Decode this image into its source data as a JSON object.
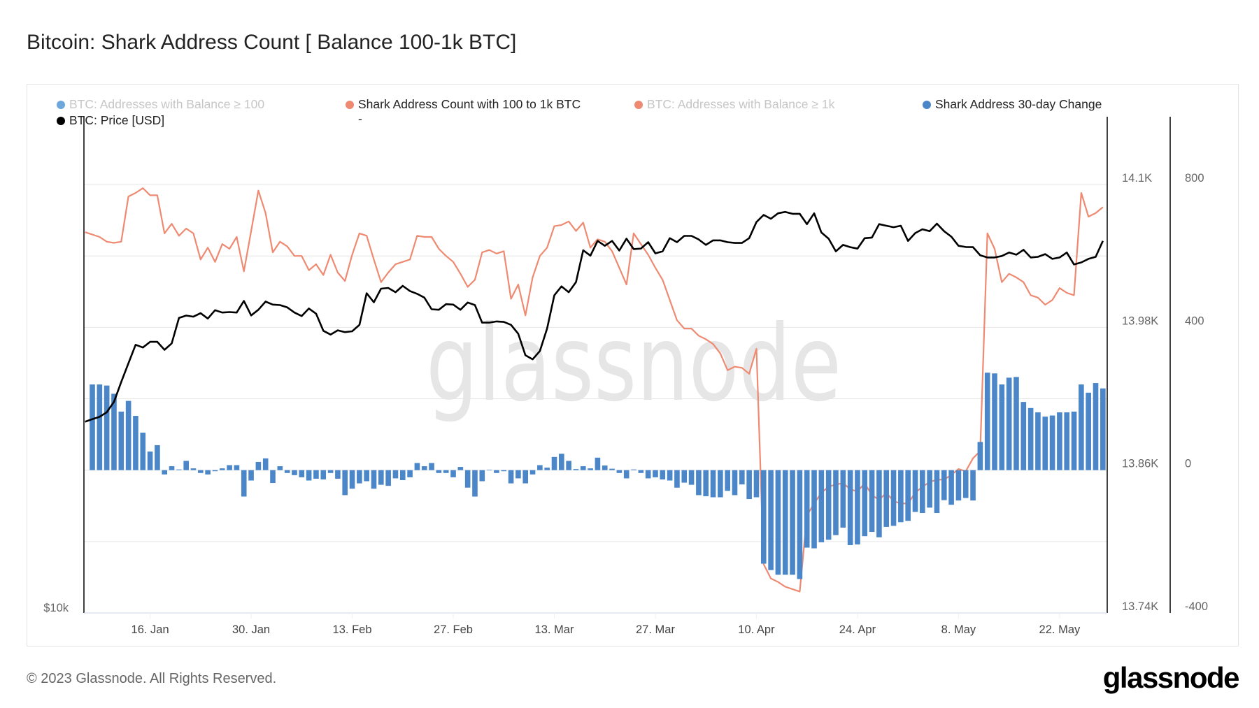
{
  "title": "Bitcoin: Shark Address Count [ Balance 100-1k BTC]",
  "footer": {
    "copyright": "© 2023 Glassnode. All Rights Reserved.",
    "logo": "glassnode"
  },
  "watermark": "glassnode",
  "legend": [
    {
      "label": "BTC: Addresses with Balance ≥ 100",
      "color": "#6ea7db",
      "enabled": false
    },
    {
      "label": "Shark Address Count with 100 to 1k BTC",
      "color": "#ee8a72",
      "enabled": true
    },
    {
      "label": "BTC: Addresses with Balance ≥ 1k",
      "color": "#ee8a72",
      "enabled": false
    },
    {
      "label": "Shark Address 30-day Change",
      "color": "#4a86c8",
      "enabled": true
    },
    {
      "label": "BTC: Price [USD]",
      "color": "#000000",
      "enabled": true
    },
    {
      "label": "-",
      "color": "",
      "enabled": true
    }
  ],
  "chart_data": {
    "type": "bar+line",
    "grid": true,
    "legend_position": "top",
    "x_ticks": [
      {
        "date": "2023-01-16",
        "label": "16. Jan"
      },
      {
        "date": "2023-01-30",
        "label": "30. Jan"
      },
      {
        "date": "2023-02-13",
        "label": "13. Feb"
      },
      {
        "date": "2023-02-27",
        "label": "27. Feb"
      },
      {
        "date": "2023-03-13",
        "label": "13. Mar"
      },
      {
        "date": "2023-03-27",
        "label": "27. Mar"
      },
      {
        "date": "2023-04-10",
        "label": "10. Apr"
      },
      {
        "date": "2023-04-24",
        "label": "24. Apr"
      },
      {
        "date": "2023-05-08",
        "label": "8. May"
      },
      {
        "date": "2023-05-22",
        "label": "22. May"
      }
    ],
    "axes": {
      "price": {
        "position": "left",
        "scale": "log",
        "ylim": [
          10000,
          39500
        ],
        "ticks": [
          {
            "value": 10000,
            "label": "$10k"
          }
        ]
      },
      "count": {
        "position": "right",
        "scale": "linear",
        "ylim": [
          13740,
          14157
        ],
        "ticks": [
          {
            "value": 14100,
            "label": "14.1K"
          },
          {
            "value": 13980,
            "label": "13.98K"
          },
          {
            "value": 13860,
            "label": "13.86K"
          },
          {
            "value": 13740,
            "label": "13.74K"
          }
        ]
      },
      "change": {
        "position": "right-outer",
        "scale": "linear",
        "ylim": [
          -400,
          990
        ],
        "ticks": [
          {
            "value": 800,
            "label": "800"
          },
          {
            "value": 400,
            "label": "400"
          },
          {
            "value": 0,
            "label": "0"
          },
          {
            "value": -400,
            "label": "-400"
          }
        ]
      }
    },
    "dates": [
      "2023-01-07",
      "2023-01-08",
      "2023-01-09",
      "2023-01-10",
      "2023-01-11",
      "2023-01-12",
      "2023-01-13",
      "2023-01-14",
      "2023-01-15",
      "2023-01-16",
      "2023-01-17",
      "2023-01-18",
      "2023-01-19",
      "2023-01-20",
      "2023-01-21",
      "2023-01-22",
      "2023-01-23",
      "2023-01-24",
      "2023-01-25",
      "2023-01-26",
      "2023-01-27",
      "2023-01-28",
      "2023-01-29",
      "2023-01-30",
      "2023-01-31",
      "2023-02-01",
      "2023-02-02",
      "2023-02-03",
      "2023-02-04",
      "2023-02-05",
      "2023-02-06",
      "2023-02-07",
      "2023-02-08",
      "2023-02-09",
      "2023-02-10",
      "2023-02-11",
      "2023-02-12",
      "2023-02-13",
      "2023-02-14",
      "2023-02-15",
      "2023-02-16",
      "2023-02-17",
      "2023-02-18",
      "2023-02-19",
      "2023-02-20",
      "2023-02-21",
      "2023-02-22",
      "2023-02-23",
      "2023-02-24",
      "2023-02-25",
      "2023-02-26",
      "2023-02-27",
      "2023-02-28",
      "2023-03-01",
      "2023-03-02",
      "2023-03-03",
      "2023-03-04",
      "2023-03-05",
      "2023-03-06",
      "2023-03-07",
      "2023-03-08",
      "2023-03-09",
      "2023-03-10",
      "2023-03-11",
      "2023-03-12",
      "2023-03-13",
      "2023-03-14",
      "2023-03-15",
      "2023-03-16",
      "2023-03-17",
      "2023-03-18",
      "2023-03-19",
      "2023-03-20",
      "2023-03-21",
      "2023-03-22",
      "2023-03-23",
      "2023-03-24",
      "2023-03-25",
      "2023-03-26",
      "2023-03-27",
      "2023-03-28",
      "2023-03-29",
      "2023-03-30",
      "2023-03-31",
      "2023-04-01",
      "2023-04-02",
      "2023-04-03",
      "2023-04-04",
      "2023-04-05",
      "2023-04-06",
      "2023-04-07",
      "2023-04-08",
      "2023-04-09",
      "2023-04-10",
      "2023-04-11",
      "2023-04-12",
      "2023-04-13",
      "2023-04-14",
      "2023-04-15",
      "2023-04-16",
      "2023-04-17",
      "2023-04-18",
      "2023-04-19",
      "2023-04-20",
      "2023-04-21",
      "2023-04-22",
      "2023-04-23",
      "2023-04-24",
      "2023-04-25",
      "2023-04-26",
      "2023-04-27",
      "2023-04-28",
      "2023-04-29",
      "2023-04-30",
      "2023-05-01",
      "2023-05-02",
      "2023-05-03",
      "2023-05-04",
      "2023-05-05",
      "2023-05-06",
      "2023-05-07",
      "2023-05-08",
      "2023-05-09",
      "2023-05-10",
      "2023-05-11",
      "2023-05-12",
      "2023-05-13",
      "2023-05-14",
      "2023-05-15",
      "2023-05-16",
      "2023-05-17",
      "2023-05-18",
      "2023-05-19",
      "2023-05-20",
      "2023-05-21",
      "2023-05-22",
      "2023-05-23",
      "2023-05-24",
      "2023-05-25",
      "2023-05-26",
      "2023-05-27",
      "2023-05-28"
    ],
    "series": [
      {
        "name": "Shark Address Count with 100 to 1k BTC",
        "type": "line",
        "axis": "count",
        "color": "#ee8a72",
        "values": [
          14060,
          14058,
          14056,
          14052,
          14051,
          14052,
          14090,
          14093,
          14097,
          14091,
          14091,
          14059,
          14067,
          14057,
          14063,
          14059,
          14037,
          14047,
          14035,
          14050,
          14046,
          14056,
          14027,
          14061,
          14095,
          14076,
          14043,
          14052,
          14048,
          14040,
          14040,
          14028,
          14033,
          14024,
          14041,
          14026,
          14019,
          14041,
          14059,
          14057,
          14037,
          14018,
          14026,
          14033,
          14035,
          14037,
          14057,
          14056,
          14056,
          14046,
          14040,
          14035,
          14025,
          14014,
          14020,
          14043,
          14045,
          14042,
          14044,
          14004,
          14016,
          13990,
          14022,
          14040,
          14047,
          14065,
          14066,
          14069,
          14061,
          14068,
          14047,
          14054,
          14052,
          14044,
          14030,
          14016,
          14059,
          14050,
          14041,
          14030,
          14020,
          14003,
          13986,
          13979,
          13979,
          13973,
          13970,
          13966,
          13958,
          13944,
          13947,
          13946,
          13941,
          13962,
          13781,
          13769,
          13766,
          13762,
          13760,
          13758,
          13822,
          13832,
          13841,
          13846,
          13848,
          13849,
          13844,
          13842,
          13849,
          13839,
          13835,
          13841,
          13834,
          13832,
          13832,
          13841,
          13846,
          13850,
          13852,
          13852,
          13856,
          13861,
          13859,
          13870,
          13876,
          14059,
          14046,
          14018,
          14025,
          14022,
          14018,
          14007,
          14005,
          13999,
          14003,
          14013,
          14009,
          14007,
          14093,
          14073,
          14076,
          14081
        ]
      },
      {
        "name": "Shark Address 30-day Change",
        "type": "bar",
        "axis": "change",
        "color": "#4a86c8",
        "values": [
          null,
          240,
          240,
          237,
          214,
          164,
          194,
          152,
          105,
          52,
          70,
          -12,
          11,
          2,
          26,
          5,
          -8,
          -12,
          -3,
          5,
          14,
          14,
          -74,
          -29,
          23,
          33,
          -36,
          11,
          -8,
          -14,
          -20,
          -29,
          -24,
          -26,
          -8,
          -24,
          -70,
          -52,
          -37,
          -31,
          -52,
          -41,
          -44,
          -23,
          -28,
          -20,
          20,
          11,
          20,
          -8,
          -8,
          -20,
          9,
          -49,
          -74,
          -31,
          1,
          -8,
          -3,
          -37,
          -23,
          -37,
          -12,
          14,
          7,
          37,
          46,
          26,
          3,
          11,
          5,
          35,
          13,
          4,
          -8,
          -23,
          2,
          -8,
          -23,
          -20,
          -26,
          -29,
          -49,
          -35,
          -41,
          -70,
          -73,
          -76,
          -76,
          -58,
          -70,
          -40,
          -81,
          -76,
          -262,
          -280,
          -293,
          -293,
          -293,
          -305,
          -217,
          -219,
          -202,
          -195,
          -182,
          -161,
          -210,
          -208,
          -185,
          -173,
          -188,
          -159,
          -156,
          -146,
          -142,
          -117,
          -120,
          -105,
          -120,
          -84,
          -97,
          -85,
          -78,
          -85,
          79,
          273,
          271,
          240,
          259,
          261,
          191,
          174,
          162,
          150,
          153,
          162,
          162,
          164,
          240,
          217,
          244,
          229
        ]
      },
      {
        "name": "BTC: Price [USD]",
        "type": "line",
        "axis": "price",
        "color": "#000000",
        "values": [
          16980,
          17100,
          17210,
          17430,
          17940,
          18950,
          19960,
          21010,
          20850,
          21180,
          21180,
          20720,
          21090,
          22630,
          22780,
          22710,
          22930,
          22590,
          23120,
          22970,
          23000,
          22970,
          23720,
          22790,
          23150,
          23680,
          23480,
          23450,
          23300,
          22970,
          22750,
          23230,
          22900,
          21840,
          21610,
          21870,
          21760,
          21810,
          22200,
          24230,
          23630,
          24540,
          24590,
          24300,
          24730,
          24380,
          24190,
          23940,
          23180,
          23150,
          23510,
          23480,
          23150,
          23620,
          23450,
          22340,
          22340,
          22410,
          22380,
          22200,
          21660,
          20410,
          20180,
          20650,
          21980,
          24090,
          24700,
          24300,
          24990,
          27290,
          26890,
          28010,
          27630,
          28010,
          27270,
          28180,
          27380,
          27420,
          27910,
          27060,
          27210,
          28220,
          27910,
          28400,
          28400,
          28120,
          27700,
          28050,
          28050,
          27910,
          27850,
          27850,
          28220,
          29510,
          30100,
          29780,
          30230,
          30350,
          30190,
          30190,
          29340,
          30230,
          28670,
          28180,
          27210,
          27700,
          27530,
          27420,
          28220,
          28270,
          29340,
          29210,
          29090,
          29210,
          28010,
          28620,
          28930,
          28770,
          29380,
          28770,
          28340,
          27630,
          27540,
          27530,
          26920,
          26750,
          26750,
          26860,
          27120,
          26960,
          27330,
          26750,
          26800,
          27000,
          26650,
          26750,
          27120,
          26240,
          26390,
          26650,
          26800,
          28010
        ]
      }
    ]
  }
}
